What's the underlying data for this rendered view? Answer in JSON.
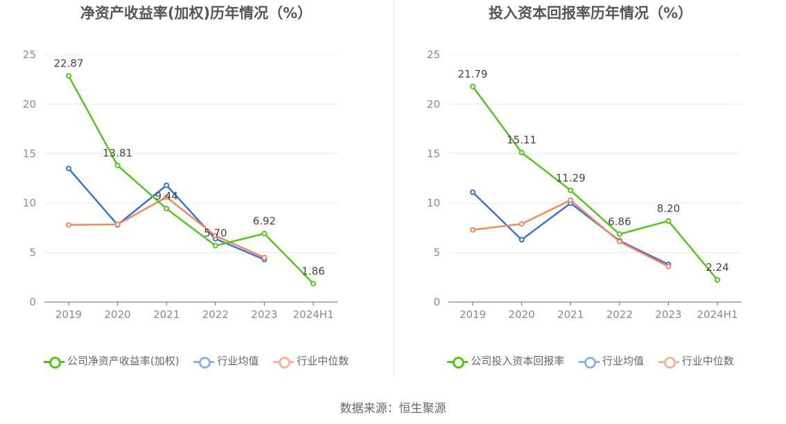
{
  "source": "数据来源：恒生聚源",
  "colors": {
    "company": "#52c41a",
    "avg": "#3a6fd8",
    "median": "#f08a5d",
    "avg_legend": "#8fb0ee",
    "median_legend": "#f7b49a"
  },
  "chart_data": [
    {
      "type": "line",
      "title": "净资产收益率(加权)历年情况（%）",
      "categories": [
        "2019",
        "2020",
        "2021",
        "2022",
        "2023",
        "2024H1"
      ],
      "ylim": [
        0,
        25
      ],
      "yticks": [
        0,
        5,
        10,
        15,
        20,
        25
      ],
      "grid": true,
      "legend_position": "bottom",
      "series": [
        {
          "name": "公司净资产收益率(加权)",
          "key": "company",
          "values": [
            22.87,
            13.81,
            9.44,
            5.7,
            6.92,
            1.86
          ],
          "labels": [
            "22.87",
            "13.81",
            "9.44",
            "5.70",
            "6.92",
            "1.86"
          ]
        },
        {
          "name": "行业均值",
          "key": "avg",
          "values": [
            13.5,
            7.8,
            11.8,
            6.4,
            4.3,
            null
          ]
        },
        {
          "name": "行业中位数",
          "key": "median",
          "values": [
            7.8,
            7.85,
            10.6,
            6.7,
            4.5,
            null
          ]
        }
      ]
    },
    {
      "type": "line",
      "title": "投入资本回报率历年情况（%）",
      "categories": [
        "2019",
        "2020",
        "2021",
        "2022",
        "2023",
        "2024H1"
      ],
      "ylim": [
        0,
        25
      ],
      "yticks": [
        0,
        5,
        10,
        15,
        20,
        25
      ],
      "grid": true,
      "legend_position": "bottom",
      "series": [
        {
          "name": "公司投入资本回报率",
          "key": "company",
          "values": [
            21.79,
            15.11,
            11.29,
            6.86,
            8.2,
            2.24
          ],
          "labels": [
            "21.79",
            "15.11",
            "11.29",
            "6.86",
            "8.20",
            "2.24"
          ]
        },
        {
          "name": "行业均值",
          "key": "avg",
          "values": [
            11.1,
            6.3,
            10.0,
            6.2,
            3.8,
            null
          ]
        },
        {
          "name": "行业中位数",
          "key": "median",
          "values": [
            7.3,
            7.9,
            10.3,
            6.1,
            3.6,
            null
          ]
        }
      ]
    }
  ]
}
